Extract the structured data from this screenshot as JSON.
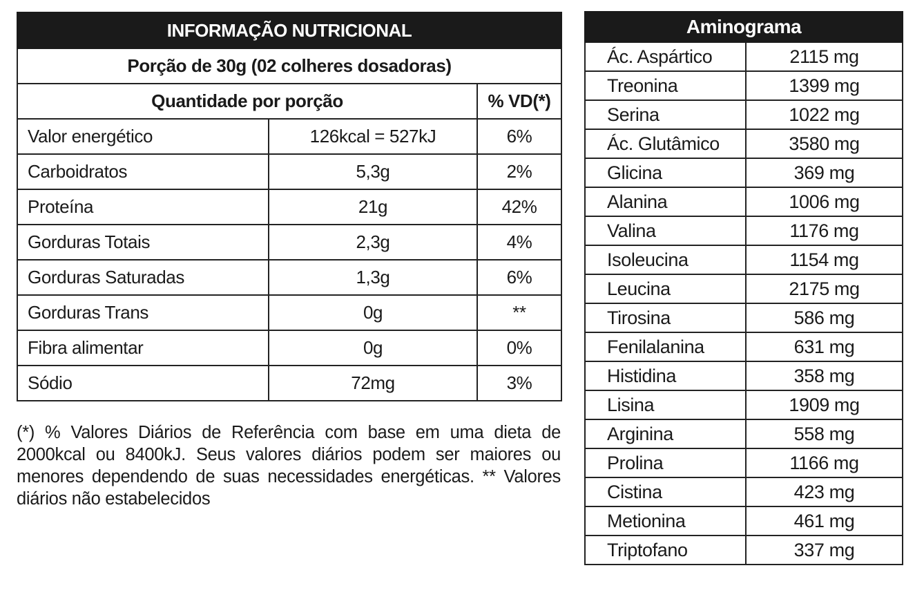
{
  "nutrition": {
    "title": "INFORMAÇÃO NUTRICIONAL",
    "portion": "Porção de 30g (02 colheres dosadoras)",
    "header_quantity": "Quantidade por porção",
    "header_vd": "% VD(*)",
    "rows": [
      {
        "name": "Valor energético",
        "qty": "126kcal = 527kJ",
        "vd": "6%"
      },
      {
        "name": "Carboidratos",
        "qty": "5,3g",
        "vd": "2%"
      },
      {
        "name": "Proteína",
        "qty": "21g",
        "vd": "42%"
      },
      {
        "name": "Gorduras Totais",
        "qty": "2,3g",
        "vd": "4%"
      },
      {
        "name": "Gorduras Saturadas",
        "qty": "1,3g",
        "vd": "6%"
      },
      {
        "name": "Gorduras Trans",
        "qty": "0g",
        "vd": "**"
      },
      {
        "name": "Fibra alimentar",
        "qty": "0g",
        "vd": "0%"
      },
      {
        "name": "Sódio",
        "qty": "72mg",
        "vd": "3%"
      }
    ],
    "footnote": "(*) % Valores Diários de Referência com base em uma dieta de 2000kcal ou 8400kJ. Seus valores diários podem ser maiores ou menores dependendo de suas necessidades energéticas. ** Valores diários não estabelecidos"
  },
  "aminogram": {
    "title": "Aminograma",
    "rows": [
      {
        "name": "Ác. Aspártico",
        "value": "2115 mg"
      },
      {
        "name": "Treonina",
        "value": "1399 mg"
      },
      {
        "name": "Serina",
        "value": "1022 mg"
      },
      {
        "name": "Ác. Glutâmico",
        "value": "3580 mg"
      },
      {
        "name": "Glicina",
        "value": "369 mg"
      },
      {
        "name": "Alanina",
        "value": "1006 mg"
      },
      {
        "name": "Valina",
        "value": "1176 mg"
      },
      {
        "name": "Isoleucina",
        "value": "1154 mg"
      },
      {
        "name": "Leucina",
        "value": "2175 mg"
      },
      {
        "name": "Tirosina",
        "value": "586 mg"
      },
      {
        "name": "Fenilalanina",
        "value": "631 mg"
      },
      {
        "name": "Histidina",
        "value": "358 mg"
      },
      {
        "name": "Lisina",
        "value": "1909 mg"
      },
      {
        "name": "Arginina",
        "value": "558 mg"
      },
      {
        "name": "Prolina",
        "value": "1166 mg"
      },
      {
        "name": "Cistina",
        "value": "423 mg"
      },
      {
        "name": "Metionina",
        "value": "461 mg"
      },
      {
        "name": "Triptofano",
        "value": "337 mg"
      }
    ]
  }
}
